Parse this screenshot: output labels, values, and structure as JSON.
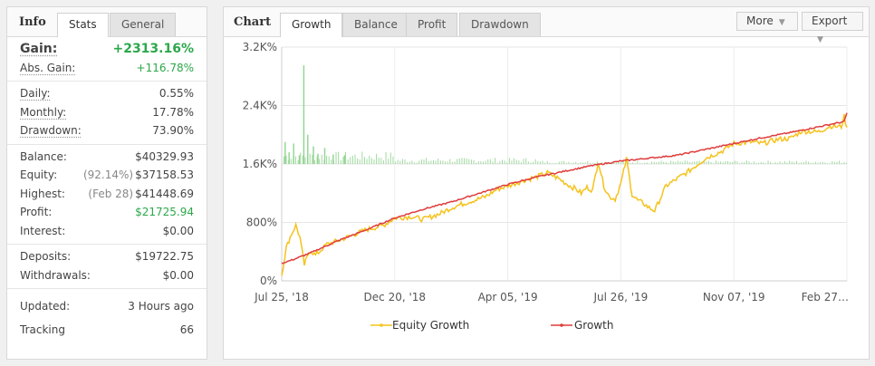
{
  "info": {
    "title": "Info",
    "tabs": [
      "Stats",
      "General"
    ],
    "gain": {
      "label": "Gain:",
      "value": "+2313.16%"
    },
    "abs_gain": {
      "label": "Abs. Gain:",
      "value": "+116.78%"
    },
    "daily": {
      "label": "Daily:",
      "value": "0.55%"
    },
    "monthly": {
      "label": "Monthly:",
      "value": "17.78%"
    },
    "drawdown": {
      "label": "Drawdown:",
      "value": "73.90%"
    },
    "balance": {
      "label": "Balance:",
      "value": "$40329.93"
    },
    "equity": {
      "label": "Equity:",
      "note": "(92.14%)",
      "value": "$37158.53"
    },
    "highest": {
      "label": "Highest:",
      "note": "(Feb 28)",
      "value": "$41448.69"
    },
    "profit": {
      "label": "Profit:",
      "value": "$21725.94"
    },
    "interest": {
      "label": "Interest:",
      "value": "$0.00"
    },
    "deposits": {
      "label": "Deposits:",
      "value": "$19722.75"
    },
    "withdrawals": {
      "label": "Withdrawals:",
      "value": "$0.00"
    },
    "updated": {
      "label": "Updated:",
      "value": "3 Hours ago"
    },
    "tracking": {
      "label": "Tracking",
      "value": "66"
    }
  },
  "chart": {
    "title": "Chart",
    "tabs": [
      "Growth",
      "Balance",
      "Profit",
      "Drawdown"
    ],
    "more_label": "More",
    "export_label": "Export"
  },
  "colors": {
    "growth": "#e03c3c",
    "equity": "#f5c21b",
    "volume": "#8fd48f",
    "gain": "#2ba84a"
  },
  "chart_data": {
    "type": "line",
    "title": "",
    "xlabel": "",
    "ylabel": "",
    "ylim": [
      0,
      3200
    ],
    "yticks": [
      0,
      800,
      1600,
      2400,
      3200
    ],
    "ytick_labels": [
      "0%",
      "800%",
      "1.6K%",
      "2.4K%",
      "3.2K%"
    ],
    "xlim": [
      0,
      100
    ],
    "xticks": [
      0,
      20,
      40,
      60,
      80,
      100
    ],
    "xtick_labels": [
      "Jul 25, '18",
      "Dec 20, '18",
      "Apr 05, '19",
      "Jul 26, '19",
      "Nov 07, '19",
      "Feb 27…"
    ],
    "legend": [
      "Equity Growth",
      "Growth"
    ],
    "legend_position": "bottom",
    "series": [
      {
        "name": "Growth",
        "color": "#e03c3c",
        "x": [
          0,
          2,
          5,
          10,
          15,
          20,
          25,
          30,
          35,
          40,
          45,
          50,
          55,
          60,
          65,
          70,
          75,
          80,
          85,
          90,
          95,
          99.5,
          100
        ],
        "y": [
          240,
          290,
          380,
          550,
          700,
          860,
          980,
          1080,
          1200,
          1320,
          1420,
          1500,
          1580,
          1640,
          1680,
          1720,
          1800,
          1880,
          1960,
          2030,
          2110,
          2180,
          2300
        ]
      },
      {
        "name": "Equity Growth",
        "color": "#f5c21b",
        "x": [
          0,
          0.8,
          1.5,
          2.5,
          3.2,
          4,
          5,
          6,
          8,
          10,
          13,
          15,
          18,
          20,
          23,
          25,
          28,
          30,
          33,
          36,
          38,
          40,
          43,
          45,
          47,
          49,
          51,
          52,
          53,
          54,
          55,
          56,
          57,
          58,
          59,
          60,
          61,
          62,
          63,
          64,
          65,
          66,
          68,
          70,
          72,
          73,
          75,
          78,
          80,
          83,
          85,
          88,
          90,
          92,
          95,
          97,
          99,
          99.5,
          100
        ],
        "y": [
          80,
          450,
          600,
          760,
          600,
          220,
          420,
          350,
          500,
          550,
          640,
          700,
          760,
          860,
          880,
          840,
          920,
          1000,
          1080,
          1150,
          1250,
          1300,
          1380,
          1420,
          1480,
          1400,
          1300,
          1260,
          1200,
          1280,
          1240,
          1640,
          1300,
          1150,
          1120,
          1330,
          1670,
          1180,
          1100,
          1060,
          1000,
          960,
          1300,
          1400,
          1500,
          1560,
          1680,
          1780,
          1880,
          1900,
          1880,
          1940,
          1950,
          2050,
          2040,
          2120,
          2110,
          2250,
          2100
        ]
      },
      {
        "name": "Volume",
        "color": "#8fd48f",
        "x": [
          0.5,
          1.2,
          2,
          3,
          3.8,
          4.5,
          5.5,
          6.3,
          7.5,
          9,
          11
        ],
        "y": [
          1900,
          1760,
          1880,
          1720,
          2950,
          2000,
          1840,
          1740,
          1820,
          1730,
          1720
        ]
      }
    ],
    "volume_baseline": 1600
  }
}
